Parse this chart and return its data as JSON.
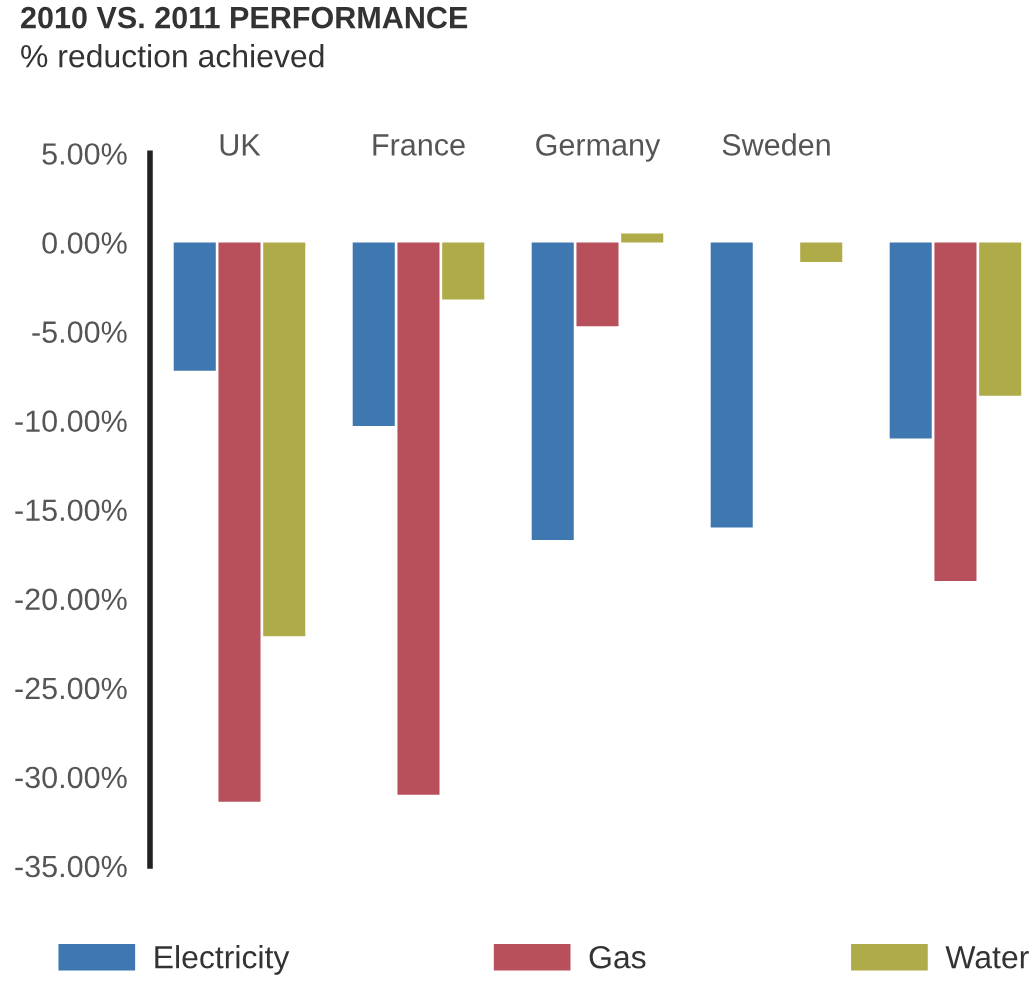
{
  "chart_data": {
    "type": "bar",
    "title": "2010 VS. 2011 PERFORMANCE",
    "subtitle": "% reduction achieved",
    "categories": [
      "UK",
      "France",
      "Germany",
      "Sweden",
      null
    ],
    "series": [
      {
        "name": "Electricity",
        "color": "#3f78b0",
        "values": [
          -7.2,
          -10.3,
          -16.7,
          -16.0,
          -11.0
        ]
      },
      {
        "name": "Gas",
        "color": "#b8505c",
        "values": [
          -31.4,
          -31.0,
          -4.7,
          null,
          -19.0
        ]
      },
      {
        "name": "Water",
        "color": "#afab48",
        "values": [
          -22.1,
          -3.2,
          0.5,
          -1.1,
          -8.6
        ]
      }
    ],
    "ylim": [
      -35,
      5
    ],
    "yticks": [
      {
        "value": 5,
        "label": "5.00%"
      },
      {
        "value": 0,
        "label": "0.00%"
      },
      {
        "value": -5,
        "label": "-5.00%"
      },
      {
        "value": -10,
        "label": "-10.00%"
      },
      {
        "value": -15,
        "label": "-15.00%"
      },
      {
        "value": -20,
        "label": "-20.00%"
      },
      {
        "value": -25,
        "label": "-25.00%"
      },
      {
        "value": -30,
        "label": "-30.00%"
      },
      {
        "value": -35,
        "label": "-35.00%"
      }
    ],
    "grid": false,
    "legend": "bottom"
  }
}
